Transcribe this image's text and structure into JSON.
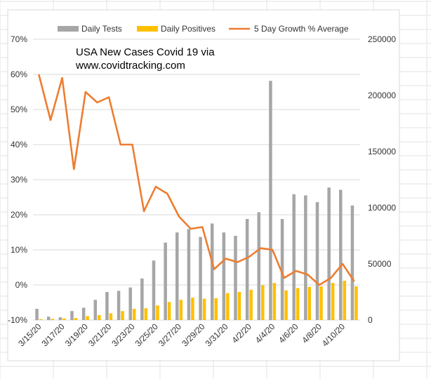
{
  "chart_data": {
    "type": "bar+line",
    "title": "USA  New Cases Covid 19 via",
    "subtitle": "www.covidtracking.com",
    "categories": [
      "3/15/20",
      "3/16/20",
      "3/17/20",
      "3/18/20",
      "3/19/20",
      "3/20/20",
      "3/21/20",
      "3/22/20",
      "3/23/20",
      "3/24/20",
      "3/25/20",
      "3/26/20",
      "3/27/20",
      "3/28/20",
      "3/29/20",
      "3/30/20",
      "3/31/20",
      "4/1/20",
      "4/2/20",
      "4/3/20",
      "4/4/20",
      "4/5/20",
      "4/6/20",
      "4/7/20",
      "4/8/20",
      "4/9/20",
      "4/10/20",
      "4/11/20"
    ],
    "x_tick_labels": [
      "3/15/20",
      "",
      "3/17/20",
      "",
      "3/19/20",
      "",
      "3/21/20",
      "",
      "3/23/20",
      "",
      "3/25/20",
      "",
      "3/27/20",
      "",
      "3/29/20",
      "",
      "3/31/20",
      "",
      "4/2/20",
      "",
      "4/4/20",
      "",
      "4/6/20",
      "",
      "4/8/20",
      "",
      "4/10/20",
      ""
    ],
    "series": [
      {
        "name": "Daily Tests",
        "axis": "secondary",
        "color": "#a6a6a6",
        "values": [
          10000,
          3000,
          2500,
          8000,
          11000,
          18000,
          25000,
          26000,
          29000,
          37000,
          53000,
          69000,
          78000,
          81000,
          74000,
          86000,
          78000,
          75000,
          90000,
          96000,
          213000,
          90000,
          112000,
          111000,
          105000,
          118000,
          116000,
          102000
        ]
      },
      {
        "name": "Daily Positives",
        "axis": "secondary",
        "color": "#ffc000",
        "values": [
          800,
          1100,
          1500,
          1800,
          3500,
          4500,
          6000,
          8000,
          10000,
          10500,
          13000,
          16000,
          18000,
          20000,
          19000,
          19500,
          24000,
          25000,
          27000,
          31000,
          33000,
          26500,
          28500,
          29500,
          30000,
          33000,
          35000,
          30000
        ]
      },
      {
        "name": "5 Day Growth % Average",
        "axis": "primary",
        "color": "#ed7d31",
        "values": [
          60,
          47,
          59,
          33,
          55,
          52,
          53.5,
          40,
          40,
          21,
          28,
          26,
          19.5,
          16,
          16.5,
          4.5,
          7.5,
          6.5,
          8,
          10.5,
          10,
          2,
          4,
          3,
          0,
          2,
          6,
          1
        ]
      }
    ],
    "y_left": {
      "min": -10,
      "max": 70,
      "step": 10,
      "tick_labels": [
        "-10%",
        "0%",
        "10%",
        "20%",
        "30%",
        "40%",
        "50%",
        "60%",
        "70%"
      ]
    },
    "y_right": {
      "min": 0,
      "max": 250000,
      "step": 50000,
      "tick_labels": [
        "0",
        "50000",
        "100000",
        "150000",
        "200000",
        "250000"
      ]
    },
    "legend_position": "top",
    "grid": true
  }
}
